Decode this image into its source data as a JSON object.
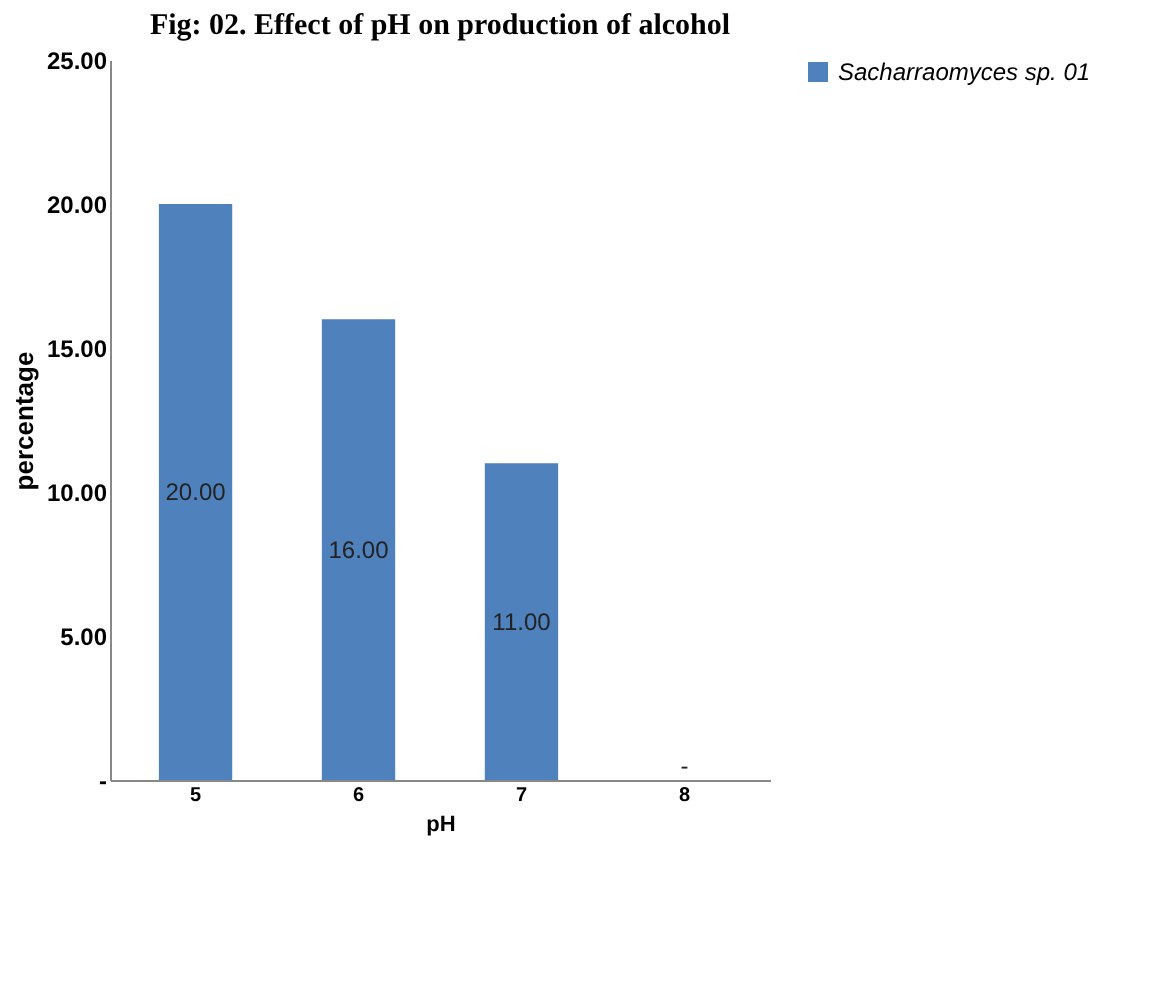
{
  "chart_data": {
    "type": "bar",
    "title": "Fig: 02. Effect of pH on production of alcohol",
    "xlabel": "pH",
    "ylabel": "percentage",
    "categories": [
      "5",
      "6",
      "7",
      "8"
    ],
    "series": [
      {
        "name": "Sacharraomyces sp. 01",
        "color": "#4f81bd",
        "values": [
          20,
          16,
          11,
          0
        ],
        "value_labels": [
          "20.00",
          "16.00",
          "11.00",
          "-"
        ]
      }
    ],
    "ylim": [
      0,
      25
    ],
    "yticks": [
      {
        "value": 0,
        "label": "-"
      },
      {
        "value": 5,
        "label": "5.00"
      },
      {
        "value": 10,
        "label": "10.00"
      },
      {
        "value": 15,
        "label": "15.00"
      },
      {
        "value": 20,
        "label": "20.00"
      },
      {
        "value": 25,
        "label": "25.00"
      }
    ],
    "grid": false,
    "legend": "right"
  }
}
